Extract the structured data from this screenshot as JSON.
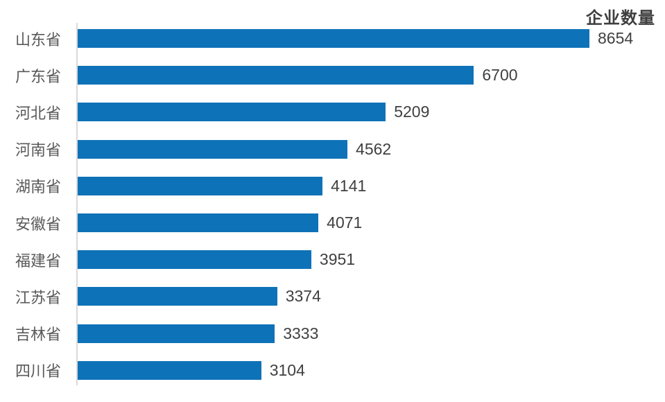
{
  "chart_data": {
    "type": "bar",
    "orientation": "horizontal",
    "title": "企业数量",
    "categories": [
      "山东省",
      "广东省",
      "河北省",
      "河南省",
      "湖南省",
      "安徽省",
      "福建省",
      "江苏省",
      "吉林省",
      "四川省"
    ],
    "values": [
      8654,
      6700,
      5209,
      4562,
      4141,
      4071,
      3951,
      3374,
      3333,
      3104
    ],
    "data_labels": true,
    "legend": "none",
    "gridlines": false,
    "x_axis_labels": false,
    "bar_color": "#0e72b8",
    "axis_line_color": "#d9d9d9",
    "category_label_color": "#595959",
    "value_label_color": "#404040",
    "title_color": "#3f3f3f",
    "background_color": "#ffffff"
  }
}
